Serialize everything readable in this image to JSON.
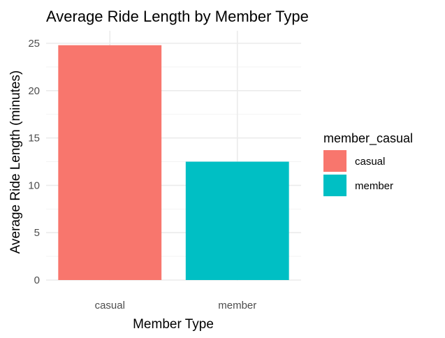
{
  "chart_data": {
    "type": "bar",
    "title": "Average Ride Length by Member Type",
    "xlabel": "Member Type",
    "ylabel": "Average Ride Length (minutes)",
    "categories": [
      "casual",
      "member"
    ],
    "values": [
      24.8,
      12.5
    ],
    "ylim": [
      0,
      25
    ],
    "yticks": [
      0,
      5,
      10,
      15,
      20,
      25
    ],
    "colors": [
      "#F8766D",
      "#00BFC4"
    ],
    "grid": true,
    "legend": {
      "title": "member_casual",
      "position": "right",
      "entries": [
        "casual",
        "member"
      ]
    }
  }
}
